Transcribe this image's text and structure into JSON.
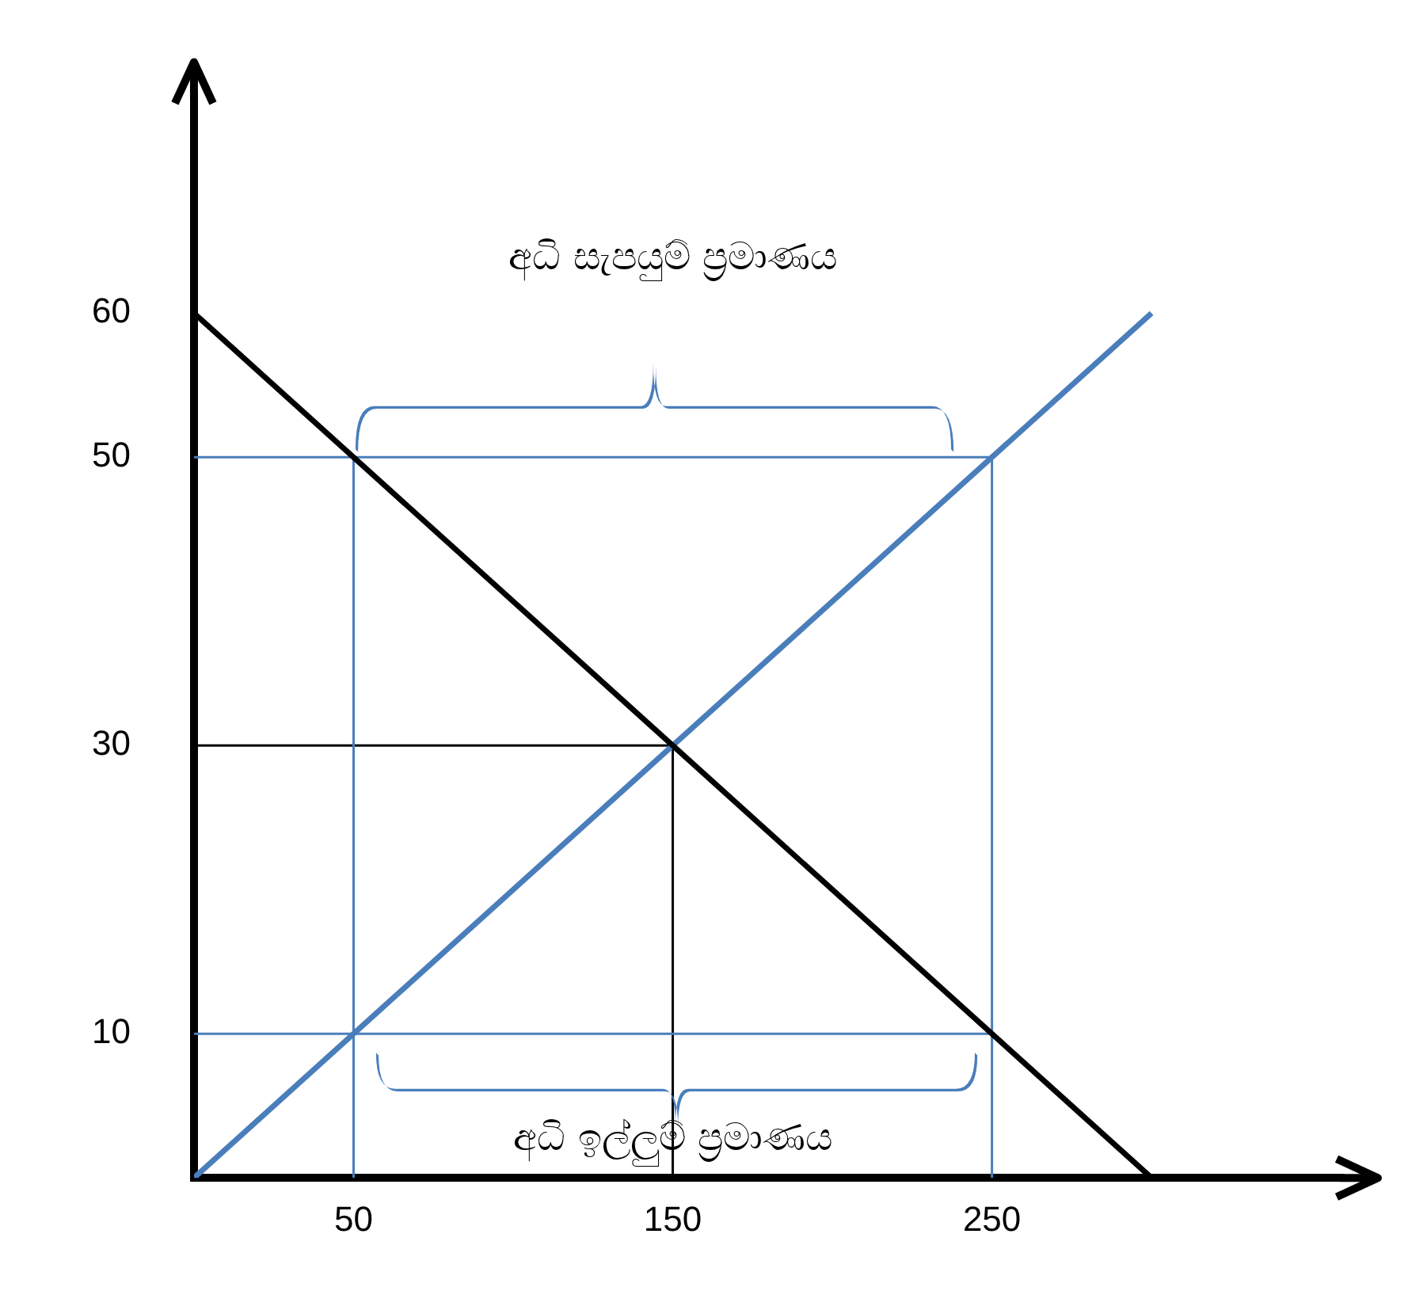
{
  "chart_data": {
    "type": "line",
    "xlim": [
      0,
      360
    ],
    "ylim": [
      0,
      75
    ],
    "xticks": [
      50,
      150,
      250
    ],
    "yticks": [
      10,
      30,
      50,
      60
    ],
    "grid": false,
    "legend": false,
    "marker": "none",
    "annotations": [
      "අධි සැපයුම් ප්‍රමාණය",
      "අධි ඉල්ලුම් ප්‍රමාණය"
    ],
    "series": [
      {
        "color": "#000000",
        "x": [
          0,
          300
        ],
        "values": [
          60,
          0
        ]
      },
      {
        "color": "#4a7ebb",
        "x": [
          0,
          300
        ],
        "values": [
          0,
          60
        ]
      },
      {
        "color": "#4a7ebb",
        "x": [
          0,
          250
        ],
        "values": [
          50,
          50
        ]
      },
      {
        "color": "#4a7ebb",
        "x": [
          0,
          250
        ],
        "values": [
          10,
          10
        ]
      },
      {
        "color": "#4a7ebb",
        "x": [
          50,
          50
        ],
        "values": [
          0,
          50
        ]
      },
      {
        "color": "#4a7ebb",
        "x": [
          250,
          250
        ],
        "values": [
          0,
          50
        ]
      },
      {
        "color": "#000000",
        "x": [
          0,
          150
        ],
        "values": [
          30,
          30
        ]
      },
      {
        "color": "#000000",
        "x": [
          150,
          150
        ],
        "values": [
          0,
          30
        ]
      }
    ]
  }
}
